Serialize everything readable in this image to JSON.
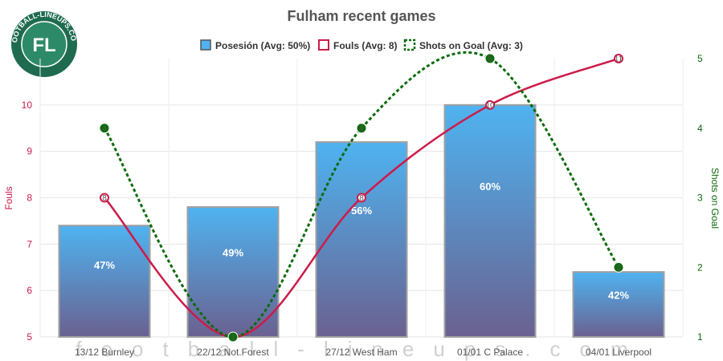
{
  "chart_data": {
    "type": "bar",
    "title": "Fulham recent games",
    "categories": [
      "13/12 Burnley",
      "22/12 Not.Forest",
      "27/12 West Ham",
      "01/01 C Palace",
      "04/01 Liverpool"
    ],
    "series": [
      {
        "name": "Posesión (Avg: 50%)",
        "type": "bar",
        "axis": "left",
        "values": [
          7.4,
          7.8,
          9.2,
          10.0,
          6.4
        ],
        "labels": [
          "47%",
          "49%",
          "56%",
          "60%",
          "42%"
        ]
      },
      {
        "name": "Fouls (Avg: 8)",
        "type": "line",
        "axis": "left",
        "values": [
          8,
          5,
          8,
          10,
          11
        ],
        "labels": [
          "8",
          "5",
          "8",
          "10",
          "11"
        ]
      },
      {
        "name": "Shots on Goal (Avg: 3)",
        "type": "line",
        "axis": "right",
        "style": "dashed",
        "values": [
          4,
          1,
          4,
          5,
          2
        ],
        "labels": [
          "4",
          "1",
          "4",
          "5",
          "2"
        ]
      }
    ],
    "ylabel": "Fouls",
    "y2label": "Shots on Goal",
    "ylim": [
      5,
      11
    ],
    "yticks": [
      "5",
      "6",
      "7",
      "8",
      "9",
      "10"
    ],
    "y2lim": [
      1,
      5
    ],
    "y2ticks": [
      "1",
      "2",
      "3",
      "4",
      "5"
    ],
    "grid": true,
    "legend": "top-center",
    "colors": {
      "bar_top": "#4fb3f0",
      "bar_bottom": "#6a6190",
      "fouls": "#cc1b49",
      "shots": "#0d6b0d",
      "left_axis": "#cc1b49",
      "right_axis": "#0d6b0d"
    }
  },
  "logo": {
    "text": "FOOTBALL-LINEUPS.COM",
    "initials": "FL"
  },
  "watermark": "football-lineups.com"
}
